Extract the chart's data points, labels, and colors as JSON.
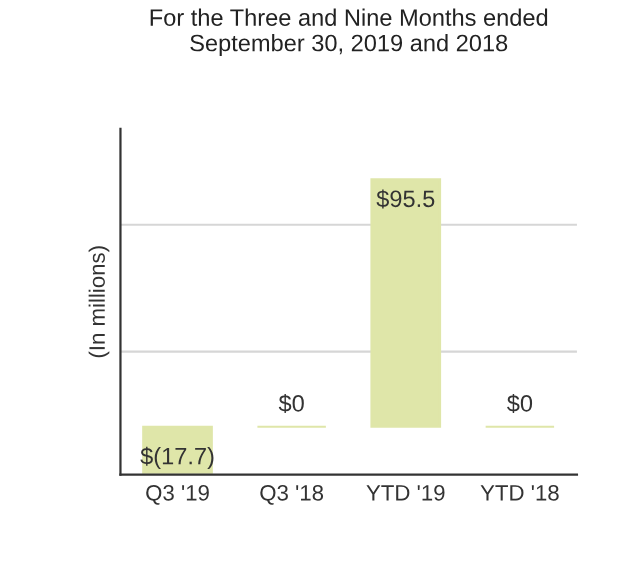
{
  "chart_data": {
    "type": "bar",
    "title": "For the Three and Nine Months ended\nSeptember 30, 2019 and 2018",
    "ylabel": "(In millions)",
    "categories": [
      "Q3 '19",
      "Q3 '18",
      "YTD '19",
      "YTD '18"
    ],
    "values": [
      -17.7,
      0,
      95.5,
      0
    ],
    "value_labels": [
      "$(17.7)",
      "$0",
      "$95.5",
      "$0"
    ],
    "color": "#dfe6a9",
    "ylim": [
      -18.5,
      115
    ],
    "ref_lines": [
      {
        "axis": "y",
        "value": 29,
        "color": "#d6d6d6"
      },
      {
        "axis": "y",
        "value": 78,
        "color": "#d6d6d6"
      }
    ],
    "legend": false
  }
}
